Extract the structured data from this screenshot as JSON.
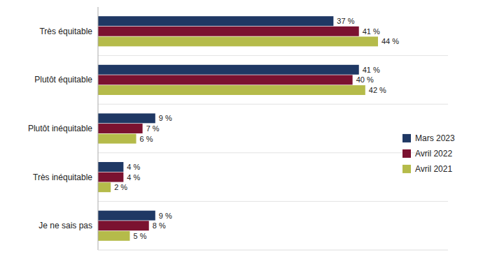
{
  "chart_data": {
    "type": "bar",
    "orientation": "horizontal",
    "categories": [
      "Très équitable",
      "Plutôt équitable",
      "Plutôt inéquitable",
      "Très inéquitable",
      "Je ne sais pas"
    ],
    "series": [
      {
        "name": "Mars 2023",
        "color": "#1f3864",
        "values": [
          37,
          41,
          9,
          4,
          9
        ],
        "value_labels": [
          "37 %",
          "41 %",
          "9 %",
          "4 %",
          "9 %"
        ]
      },
      {
        "name": "Avril 2022",
        "color": "#7b1230",
        "values": [
          41,
          40,
          7,
          4,
          8
        ],
        "value_labels": [
          "41 %",
          "40 %",
          "7 %",
          "4 %",
          "8 %"
        ]
      },
      {
        "name": "Avril 2021",
        "color": "#b5bb4a",
        "values": [
          44,
          42,
          6,
          2,
          5
        ],
        "value_labels": [
          "44 %",
          "42 %",
          "6 %",
          "2 %",
          "5 %"
        ]
      }
    ],
    "xlim": [
      0,
      55
    ],
    "data_labels": true,
    "tick_labels": "y",
    "grid": false,
    "legend": "lower right"
  }
}
